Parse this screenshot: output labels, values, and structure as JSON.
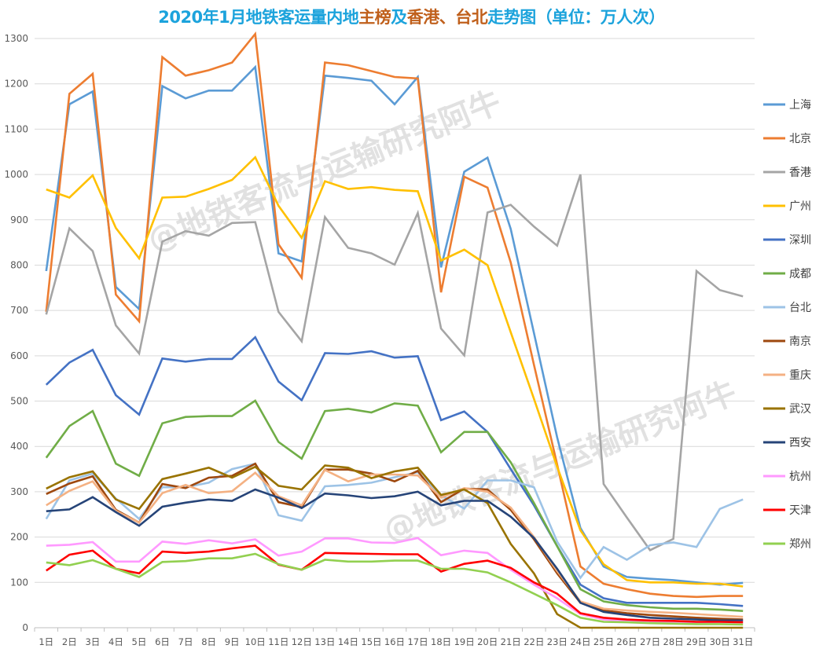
{
  "title": {
    "segments": [
      {
        "text": "2020年1月地铁客运量内地",
        "color": "blue"
      },
      {
        "text": "主榜",
        "color": "brown"
      },
      {
        "text": "及",
        "color": "blue"
      },
      {
        "text": "香港、台北",
        "color": "brown"
      },
      {
        "text": "走势图（单位：万人次）",
        "color": "blue"
      }
    ]
  },
  "watermark": {
    "text": "@地铁客流与运输研究阿牛"
  },
  "chart_data": {
    "type": "line",
    "title": "2020年1月地铁客运量内地主榜及香港、台北走势图（单位：万人次）",
    "xlabel": "",
    "ylabel": "",
    "ylim": [
      0,
      1300
    ],
    "yticks": [
      0,
      100,
      200,
      300,
      400,
      500,
      600,
      700,
      800,
      900,
      1000,
      1100,
      1200,
      1300
    ],
    "grid": true,
    "legend_position": "right",
    "categories": [
      "1日",
      "2日",
      "3日",
      "4日",
      "5日",
      "6日",
      "7日",
      "8日",
      "9日",
      "10日",
      "11日",
      "12日",
      "13日",
      "14日",
      "15日",
      "16日",
      "17日",
      "18日",
      "19日",
      "20日",
      "21日",
      "22日",
      "23日",
      "24日",
      "25日",
      "26日",
      "27日",
      "28日",
      "29日",
      "30日",
      "31日"
    ],
    "series": [
      {
        "name": "上海",
        "color": "#5b9bd5",
        "values": [
          787,
          1155,
          1183,
          752,
          703,
          1195,
          1168,
          1185,
          1185,
          1237,
          826,
          808,
          1218,
          1213,
          1207,
          1155,
          1215,
          795,
          1006,
          1037,
          880,
          650,
          420,
          220,
          135,
          112,
          108,
          105,
          100,
          95,
          99
        ]
      },
      {
        "name": "北京",
        "color": "#ed7d31",
        "values": [
          697,
          1178,
          1222,
          735,
          676,
          1259,
          1218,
          1230,
          1247,
          1310,
          846,
          772,
          1247,
          1241,
          1228,
          1215,
          1212,
          740,
          995,
          971,
          806,
          580,
          360,
          135,
          97,
          85,
          75,
          70,
          68,
          70,
          70
        ]
      },
      {
        "name": "香港",
        "color": "#a5a5a5",
        "values": [
          691,
          881,
          831,
          667,
          605,
          852,
          875,
          865,
          893,
          895,
          697,
          632,
          906,
          838,
          826,
          801,
          915,
          660,
          601,
          916,
          933,
          885,
          843,
          1000,
          317,
          243,
          171,
          196,
          787,
          745,
          731
        ]
      },
      {
        "name": "广州",
        "color": "#ffc000",
        "values": [
          967,
          949,
          998,
          882,
          815,
          949,
          951,
          968,
          988,
          1038,
          931,
          860,
          985,
          968,
          972,
          966,
          963,
          810,
          834,
          800,
          652,
          505,
          355,
          215,
          140,
          105,
          100,
          100,
          97,
          97,
          91
        ]
      },
      {
        "name": "深圳",
        "color": "#4472c4",
        "values": [
          536,
          585,
          613,
          513,
          470,
          594,
          587,
          593,
          593,
          641,
          543,
          502,
          606,
          604,
          610,
          596,
          599,
          458,
          477,
          432,
          350,
          270,
          180,
          95,
          65,
          55,
          55,
          55,
          55,
          52,
          48
        ]
      },
      {
        "name": "成都",
        "color": "#70ad47",
        "values": [
          375,
          445,
          478,
          362,
          335,
          451,
          465,
          467,
          467,
          501,
          410,
          373,
          478,
          483,
          475,
          495,
          490,
          387,
          432,
          432,
          365,
          275,
          180,
          85,
          58,
          50,
          45,
          42,
          42,
          40,
          37
        ]
      },
      {
        "name": "台北",
        "color": "#9dc3e6",
        "values": [
          240,
          325,
          340,
          285,
          240,
          310,
          310,
          320,
          350,
          362,
          248,
          236,
          312,
          315,
          320,
          332,
          343,
          292,
          263,
          325,
          325,
          310,
          190,
          110,
          178,
          150,
          182,
          188,
          178,
          262,
          283
        ]
      },
      {
        "name": "南京",
        "color": "#9e480e",
        "values": [
          295,
          318,
          334,
          260,
          232,
          317,
          308,
          331,
          335,
          362,
          277,
          266,
          349,
          349,
          340,
          323,
          346,
          277,
          307,
          305,
          260,
          195,
          120,
          55,
          38,
          32,
          28,
          25,
          22,
          20,
          18
        ]
      },
      {
        "name": "重庆",
        "color": "#f4b183",
        "values": [
          270,
          302,
          323,
          258,
          232,
          297,
          315,
          297,
          301,
          342,
          290,
          270,
          348,
          323,
          338,
          338,
          336,
          287,
          308,
          300,
          265,
          200,
          125,
          58,
          42,
          38,
          35,
          33,
          30,
          27,
          24
        ]
      },
      {
        "name": "武汉",
        "color": "#997300",
        "values": [
          307,
          332,
          345,
          283,
          262,
          328,
          340,
          353,
          331,
          355,
          313,
          305,
          358,
          353,
          330,
          345,
          353,
          293,
          305,
          275,
          185,
          120,
          30,
          0,
          0,
          0,
          0,
          0,
          0,
          0,
          0
        ]
      },
      {
        "name": "西安",
        "color": "#264478",
        "values": [
          257,
          261,
          288,
          255,
          225,
          267,
          276,
          283,
          280,
          305,
          287,
          264,
          296,
          292,
          286,
          290,
          300,
          270,
          280,
          280,
          245,
          198,
          130,
          55,
          35,
          28,
          22,
          20,
          18,
          16,
          16
        ]
      },
      {
        "name": "杭州",
        "color": "#ff99ff",
        "values": [
          181,
          183,
          189,
          146,
          146,
          190,
          185,
          193,
          186,
          195,
          159,
          168,
          197,
          197,
          188,
          187,
          198,
          160,
          170,
          165,
          128,
          95,
          65,
          30,
          18,
          15,
          14,
          13,
          12,
          12,
          12
        ]
      },
      {
        "name": "天津",
        "color": "#ff0000",
        "values": [
          126,
          161,
          170,
          130,
          120,
          168,
          165,
          168,
          175,
          181,
          139,
          128,
          165,
          164,
          163,
          162,
          162,
          124,
          141,
          148,
          132,
          100,
          75,
          32,
          22,
          18,
          16,
          15,
          13,
          13,
          12
        ]
      },
      {
        "name": "郑州",
        "color": "#92d050",
        "values": [
          144,
          138,
          149,
          130,
          112,
          145,
          147,
          153,
          153,
          163,
          140,
          128,
          150,
          146,
          146,
          148,
          148,
          130,
          130,
          122,
          100,
          75,
          50,
          22,
          13,
          12,
          10,
          9,
          8,
          8,
          7
        ]
      }
    ]
  }
}
